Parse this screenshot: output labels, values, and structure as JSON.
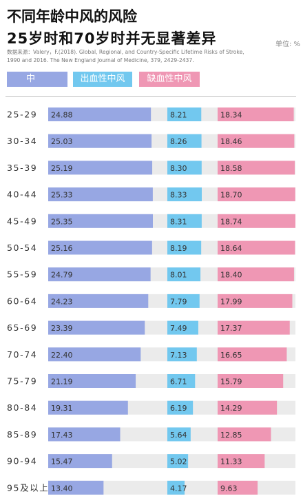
{
  "title_line1": "不同年龄中风的风险",
  "title_line2": "25岁时和70岁时并无显著差异",
  "unit_label": "单位: %",
  "source_lines": [
    "数据来源：Valery，F.(2018). Global, Regional, and Country-Specific Lifetime Risks of Stroke,",
    "1990 and 2016. The New England Journal of Medicine, 379, 2429-2437."
  ],
  "colors": {
    "stroke": "#97a7e3",
    "hemorrhagic": "#72c8ef",
    "ischemic": "#ef97b4",
    "track": "#ebebeb"
  },
  "chart_data": {
    "type": "bar",
    "orientation": "horizontal",
    "title": "不同年龄中风的风险",
    "subtitle": "25岁时和70岁时并无显著差异",
    "unit": "%",
    "legend_placement": "top",
    "categories": [
      "25-29",
      "30-34",
      "35-39",
      "40-44",
      "45-49",
      "50-54",
      "55-59",
      "60-64",
      "65-69",
      "70-74",
      "75-79",
      "80-84",
      "85-89",
      "90-94",
      "95及以上"
    ],
    "series": [
      {
        "name": "中　风",
        "values": [
          "24.88",
          "25.03",
          "25.19",
          "25.33",
          "25.35",
          "25.16",
          "24.79",
          "24.23",
          "23.39",
          "22.40",
          "21.19",
          "19.31",
          "17.43",
          "15.47",
          "13.40"
        ]
      },
      {
        "name": "出血性中风",
        "values": [
          "8.21",
          "8.26",
          "8.30",
          "8.33",
          "8.31",
          "8.19",
          "8.01",
          "7.79",
          "7.49",
          "7.13",
          "6.71",
          "6.19",
          "5.64",
          "5.02",
          "4.17"
        ]
      },
      {
        "name": "缺血性中风",
        "values": [
          "18.34",
          "18.46",
          "18.58",
          "18.70",
          "18.74",
          "18.64",
          "18.40",
          "17.99",
          "17.37",
          "16.65",
          "15.79",
          "14.29",
          "12.85",
          "11.33",
          "9.63"
        ]
      }
    ]
  }
}
